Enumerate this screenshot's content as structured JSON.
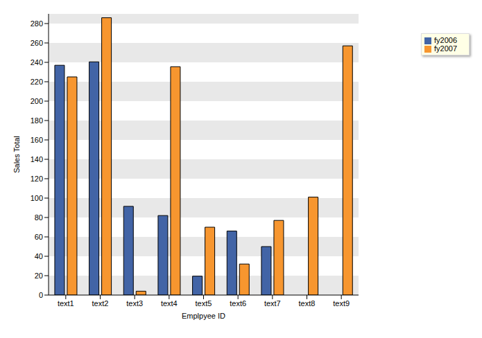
{
  "chart_data": {
    "type": "bar",
    "x_label": "Emplpyee ID",
    "y_label": "Sales Total",
    "categories": [
      "text1",
      "text2",
      "text3",
      "text4",
      "text5",
      "text6",
      "text7",
      "text8",
      "text9"
    ],
    "series": [
      {
        "name": "fy2006",
        "color": "#4264a6",
        "values": [
          237,
          240.5,
          91.5,
          82,
          19.5,
          66,
          50,
          0,
          0
        ]
      },
      {
        "name": "fy2007",
        "color": "#f7962f",
        "values": [
          225,
          286,
          4,
          235.5,
          70,
          32,
          77,
          101,
          257
        ]
      }
    ],
    "ylim": [
      0,
      290
    ],
    "yticks": [
      0,
      20,
      40,
      60,
      80,
      100,
      120,
      140,
      160,
      180,
      200,
      220,
      240,
      260,
      280
    ],
    "grid": true,
    "legend": "right"
  }
}
